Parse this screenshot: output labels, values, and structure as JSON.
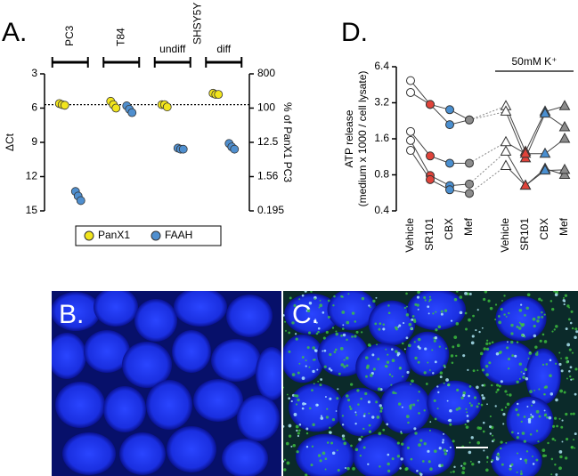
{
  "chart_data": [
    {
      "type": "strip",
      "panel": "A.",
      "categories": [
        "PC3",
        "T84",
        "undiff",
        "diff"
      ],
      "group_label": "SHSY5Y",
      "ylabel": "ΔCt",
      "ylim": [
        3,
        15
      ],
      "y_inverted": true,
      "yticks": [
        3,
        6,
        9,
        12,
        15
      ],
      "y2label": "% of PanX1 PC3",
      "y2lim": [
        0.195,
        800
      ],
      "y2log": true,
      "y2ticks": [
        800,
        100,
        12.5,
        1.56,
        0.195
      ],
      "reference_line": 5.7,
      "legend_position": "bottom",
      "series": [
        {
          "name": "PanX1",
          "color": "#f2e51d",
          "values": [
            [
              5.6,
              5.7,
              5.75
            ],
            [
              5.4,
              5.7,
              6.0
            ],
            [
              5.7,
              5.7,
              5.9
            ],
            [
              4.7,
              4.8,
              4.8
            ]
          ]
        },
        {
          "name": "FAAH",
          "color": "#4f8fcf",
          "values": [
            [
              13.3,
              13.7,
              14.1
            ],
            [
              5.8,
              6.1,
              6.4
            ],
            [
              9.5,
              9.6,
              9.6
            ],
            [
              9.1,
              9.4,
              9.6
            ]
          ]
        }
      ]
    },
    {
      "type": "line",
      "panel": "D.",
      "categories": [
        "Vehicle",
        "SR101",
        "CBX",
        "Mef",
        "Vehicle",
        "SR101",
        "CBX",
        "Mef"
      ],
      "ylabel": [
        "ATP release",
        "(medium x 1000 / cell lysate)"
      ],
      "ylim": [
        0.4,
        6.4
      ],
      "ylog": true,
      "yticks": [
        0.4,
        0.8,
        1.6,
        3.2,
        6.4
      ],
      "annotation": "50mM K⁺",
      "group_size": 4,
      "markers": [
        "circle",
        "triangle"
      ],
      "marker_colors": [
        "#ffffff",
        "#e0433a",
        "#4a8fd0",
        "#8c8c8c",
        "#ffffff",
        "#e0433a",
        "#4a8fd0",
        "#8c8c8c"
      ],
      "line_color": "#444444",
      "series": [
        {
          "values": [
            4.9,
            3.1,
            2.8,
            2.3,
            3.0,
            1.25,
            2.7,
            3.0
          ]
        },
        {
          "values": [
            3.9,
            3.1,
            2.1,
            2.3,
            2.7,
            1.1,
            2.6,
            2.0
          ]
        },
        {
          "values": [
            1.84,
            1.15,
            1.0,
            1.0,
            1.5,
            1.2,
            1.2,
            1.6
          ]
        },
        {
          "values": [
            1.55,
            0.79,
            0.65,
            0.67,
            1.25,
            0.65,
            0.9,
            0.8
          ]
        },
        {
          "values": [
            1.28,
            0.73,
            0.6,
            0.56,
            0.95,
            0.65,
            0.87,
            0.88
          ]
        }
      ]
    }
  ],
  "images": [
    {
      "label": "B."
    },
    {
      "label": "C."
    }
  ]
}
